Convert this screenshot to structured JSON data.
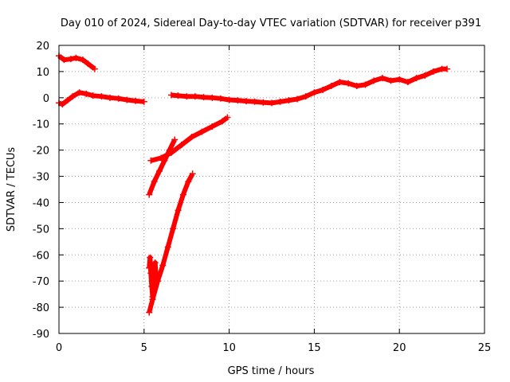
{
  "chart_data": {
    "type": "scatter",
    "title": "Day 010 of 2024, Sidereal Day-to-day VTEC variation (SDTVAR) for receiver p391",
    "xlabel": "GPS time / hours",
    "ylabel": "SDTVAR / TECUs",
    "xlim": [
      0,
      25
    ],
    "ylim": [
      -90,
      20
    ],
    "x_ticks": [
      "0",
      "5",
      "10",
      "15",
      "20",
      "25"
    ],
    "y_ticks": [
      "20",
      "10",
      "0",
      "-10",
      "-20",
      "-30",
      "-40",
      "-50",
      "-60",
      "-70",
      "-80",
      "-90"
    ],
    "grid": true,
    "marker": "plus",
    "color": "#ff0000",
    "series": [
      {
        "name": "track-early-high",
        "x": [
          0.0,
          0.3,
          0.7,
          1.0,
          1.4,
          1.7,
          2.1
        ],
        "y": [
          16,
          14.5,
          14.8,
          15.2,
          14.5,
          13,
          11
        ]
      },
      {
        "name": "track-early-zero",
        "x": [
          0.0,
          0.2,
          0.5,
          0.8,
          1.2,
          1.6,
          2.0,
          2.5,
          3.0,
          3.5,
          4.0,
          4.5,
          5.0
        ],
        "y": [
          -2,
          -2.5,
          -1,
          0.5,
          2,
          1.5,
          0.8,
          0.5,
          0,
          -0.3,
          -0.8,
          -1.2,
          -1.5
        ]
      },
      {
        "name": "track-main",
        "x": [
          6.6,
          7.0,
          7.5,
          8.0,
          8.5,
          9.0,
          9.5,
          10.0,
          10.5,
          11.0,
          11.5,
          12.0,
          12.5,
          13.0,
          13.5,
          14.0,
          14.5,
          15.0,
          15.5,
          16.0,
          16.5,
          17.0,
          17.5,
          18.0,
          18.5,
          19.0,
          19.5,
          20.0,
          20.5,
          21.0,
          21.5,
          22.0,
          22.5,
          22.8
        ],
        "y": [
          1,
          0.8,
          0.5,
          0.5,
          0.2,
          0,
          -0.3,
          -0.8,
          -1,
          -1.3,
          -1.5,
          -1.8,
          -2,
          -1.5,
          -1,
          -0.5,
          0.5,
          2,
          3,
          4.5,
          6,
          5.5,
          4.5,
          5,
          6.5,
          7.5,
          6.5,
          7,
          6,
          7.5,
          8.5,
          10,
          11,
          11
        ]
      },
      {
        "name": "track-steep-ascent",
        "x": [
          5.3,
          5.5,
          5.8,
          6.1,
          6.4,
          6.7,
          7.0,
          7.3,
          7.6,
          7.85
        ],
        "y": [
          -82,
          -77,
          -70,
          -64,
          -57,
          -50,
          -43,
          -37,
          -32,
          -29
        ]
      },
      {
        "name": "track-spike",
        "x": [
          5.3,
          5.35,
          5.4,
          5.45,
          5.5,
          5.55,
          5.6,
          5.65,
          5.7
        ],
        "y": [
          -65,
          -61,
          -67,
          -72,
          -76,
          -70,
          -66,
          -63,
          -68
        ]
      },
      {
        "name": "track-diagonal-a",
        "x": [
          5.3,
          5.6,
          5.9,
          6.2,
          6.5,
          6.8
        ],
        "y": [
          -37,
          -32,
          -28,
          -24,
          -20,
          -16
        ]
      },
      {
        "name": "track-diagonal-b",
        "x": [
          5.4,
          6.0,
          6.6,
          7.2,
          7.8,
          8.4,
          9.0,
          9.6,
          9.9
        ],
        "y": [
          -24,
          -23,
          -21,
          -18,
          -15,
          -13,
          -11,
          -9,
          -7.5
        ]
      }
    ]
  }
}
